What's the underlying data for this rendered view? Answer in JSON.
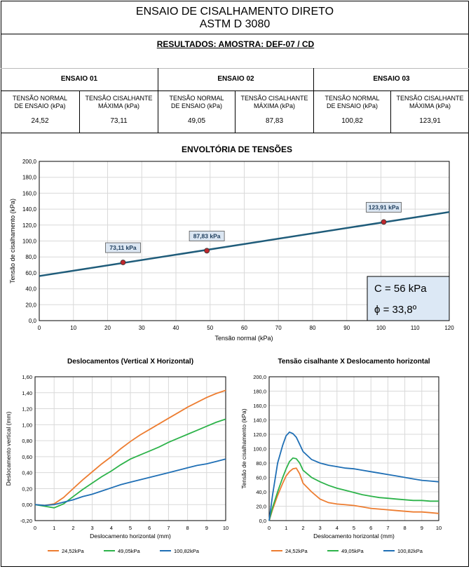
{
  "header": {
    "title_line1": "ENSAIO DE CISALHAMENTO DIRETO",
    "title_line2": "ASTM D 3080",
    "subtitle": "RESULTADOS: AMOSTRA: DEF-07 / CD"
  },
  "results": {
    "col_normal": "TENSÃO NORMAL DE ENSAIO (kPa)",
    "col_normal_l1": "TENSÃO NORMAL",
    "col_normal_l2": "DE ENSAIO (kPa)",
    "col_shear_l1": "TENSÃO CISALHANTE",
    "col_shear_l2": "MÁXIMA (kPa)",
    "tests": [
      {
        "name": "ENSAIO 01",
        "normal": "24,52",
        "shear": "73,11"
      },
      {
        "name": "ENSAIO 02",
        "normal": "49,05",
        "shear": "87,83"
      },
      {
        "name": "ENSAIO 03",
        "normal": "100,82",
        "shear": "123,91"
      }
    ]
  },
  "chart_data": [
    {
      "type": "scatter",
      "title": "ENVOLTÓRIA DE TENSÕES",
      "xlabel": "Tensão normal (kPa)",
      "ylabel": "Tensão de cisalhamento (kPa)",
      "xlim": [
        0,
        120
      ],
      "ylim": [
        0,
        200
      ],
      "xticks": [
        "0",
        "10",
        "20",
        "30",
        "40",
        "50",
        "60",
        "70",
        "80",
        "90",
        "100",
        "110",
        "120"
      ],
      "yticks": [
        "0,0",
        "20,0",
        "40,0",
        "60,0",
        "80,0",
        "100,0",
        "120,0",
        "140,0",
        "160,0",
        "180,0",
        "200,0"
      ],
      "grid": true,
      "points": [
        {
          "x": 24.52,
          "y": 73.11,
          "label": "73,11 kPa"
        },
        {
          "x": 49.05,
          "y": 87.83,
          "label": "87,83 kPa"
        },
        {
          "x": 100.82,
          "y": 123.91,
          "label": "123,91 kPa"
        }
      ],
      "fit_line": {
        "x": [
          0,
          120
        ],
        "y": [
          56,
          136.4
        ]
      },
      "annotation": {
        "c": "C = 56 kPa",
        "phi": "ϕ = 33,8º"
      },
      "colors": {
        "line": "#1f5c7a",
        "point": "#c0282d",
        "label_bg": "#dbe6f2",
        "box_bg": "#dce8f5"
      }
    },
    {
      "type": "line",
      "title": "Deslocamentos (Vertical X Horizontal)",
      "xlabel": "Deslocamento horizontal (mm)",
      "ylabel": "Deslocamento vertical (mm)",
      "xlim": [
        0,
        10
      ],
      "ylim": [
        -0.2,
        1.6
      ],
      "xticks": [
        "0",
        "1",
        "2",
        "3",
        "4",
        "5",
        "6",
        "7",
        "8",
        "9",
        "10"
      ],
      "yticks": [
        "-0,20",
        "0,00",
        "0,20",
        "0,40",
        "0,60",
        "0,80",
        "1,00",
        "1,20",
        "1,40",
        "1,60"
      ],
      "grid": true,
      "legend": "bottom",
      "series": [
        {
          "name": "24,52kPa",
          "color": "#ed7d31",
          "x": [
            0,
            0.5,
            1,
            1.5,
            2,
            2.5,
            3,
            3.5,
            4,
            4.5,
            5,
            5.5,
            6,
            6.5,
            7,
            7.5,
            8,
            8.5,
            9,
            9.5,
            10
          ],
          "y": [
            0,
            -0.01,
            0.01,
            0.09,
            0.2,
            0.31,
            0.41,
            0.51,
            0.6,
            0.7,
            0.79,
            0.87,
            0.94,
            1.01,
            1.08,
            1.15,
            1.22,
            1.28,
            1.34,
            1.39,
            1.43
          ]
        },
        {
          "name": "49,05kPa",
          "color": "#2db34a",
          "x": [
            0,
            0.5,
            1,
            1.5,
            2,
            2.5,
            3,
            3.5,
            4,
            4.5,
            5,
            5.5,
            6,
            6.5,
            7,
            7.5,
            8,
            8.5,
            9,
            9.5,
            10
          ],
          "y": [
            0,
            -0.02,
            -0.04,
            0.01,
            0.1,
            0.19,
            0.27,
            0.35,
            0.42,
            0.5,
            0.57,
            0.62,
            0.67,
            0.72,
            0.78,
            0.83,
            0.88,
            0.93,
            0.98,
            1.03,
            1.07
          ]
        },
        {
          "name": "100,82kPa",
          "color": "#1f6fb5",
          "x": [
            0,
            0.5,
            1,
            1.5,
            2,
            2.5,
            3,
            3.5,
            4,
            4.5,
            5,
            5.5,
            6,
            6.5,
            7,
            7.5,
            8,
            8.5,
            9,
            9.5,
            10
          ],
          "y": [
            0,
            -0.01,
            0,
            0.03,
            0.06,
            0.1,
            0.13,
            0.17,
            0.21,
            0.25,
            0.28,
            0.31,
            0.34,
            0.37,
            0.4,
            0.43,
            0.46,
            0.49,
            0.51,
            0.54,
            0.57
          ]
        }
      ]
    },
    {
      "type": "line",
      "title": "Tensão cisalhante X Deslocamento horizontal",
      "xlabel": "Deslocamento horizontal (mm)",
      "ylabel": "Tensão de cisalhamento (kPa)",
      "xlim": [
        0,
        10
      ],
      "ylim": [
        0,
        200
      ],
      "xticks": [
        "0",
        "1",
        "2",
        "3",
        "4",
        "5",
        "6",
        "7",
        "8",
        "9",
        "10"
      ],
      "yticks": [
        "0,0",
        "20,0",
        "40,0",
        "60,0",
        "80,0",
        "100,0",
        "120,0",
        "140,0",
        "160,0",
        "180,0",
        "200,0"
      ],
      "grid": true,
      "legend": "bottom",
      "series": [
        {
          "name": "24,52kPa",
          "color": "#ed7d31",
          "x": [
            0,
            0.2,
            0.5,
            0.8,
            1,
            1.2,
            1.4,
            1.6,
            1.8,
            2,
            2.5,
            3,
            3.5,
            4,
            4.5,
            5,
            5.5,
            6,
            6.5,
            7,
            7.5,
            8,
            8.5,
            9,
            9.5,
            10
          ],
          "y": [
            0,
            15,
            35,
            52,
            62,
            68,
            72,
            73,
            65,
            52,
            40,
            30,
            25,
            23,
            22,
            21,
            19,
            17,
            16,
            15,
            14,
            13,
            12,
            12,
            11,
            10
          ]
        },
        {
          "name": "49,05kPa",
          "color": "#2db34a",
          "x": [
            0,
            0.2,
            0.5,
            0.8,
            1,
            1.2,
            1.4,
            1.6,
            1.8,
            2,
            2.5,
            3,
            3.5,
            4,
            4.5,
            5,
            5.5,
            6,
            6.5,
            7,
            7.5,
            8,
            8.5,
            9,
            9.5,
            10
          ],
          "y": [
            0,
            18,
            40,
            60,
            72,
            82,
            87,
            86,
            80,
            70,
            60,
            54,
            49,
            45,
            42,
            39,
            36,
            34,
            32,
            31,
            30,
            29,
            28,
            28,
            27,
            27
          ]
        },
        {
          "name": "100,82kPa",
          "color": "#1f6fb5",
          "x": [
            0,
            0.2,
            0.5,
            0.8,
            1,
            1.2,
            1.4,
            1.6,
            1.8,
            2,
            2.5,
            3,
            3.5,
            4,
            4.5,
            5,
            5.5,
            6,
            6.5,
            7,
            7.5,
            8,
            8.5,
            9,
            9.5,
            10
          ],
          "y": [
            0,
            35,
            80,
            105,
            118,
            123,
            121,
            116,
            106,
            96,
            85,
            80,
            77,
            75,
            73,
            72,
            70,
            68,
            66,
            64,
            62,
            60,
            58,
            56,
            55,
            54
          ]
        }
      ]
    }
  ]
}
